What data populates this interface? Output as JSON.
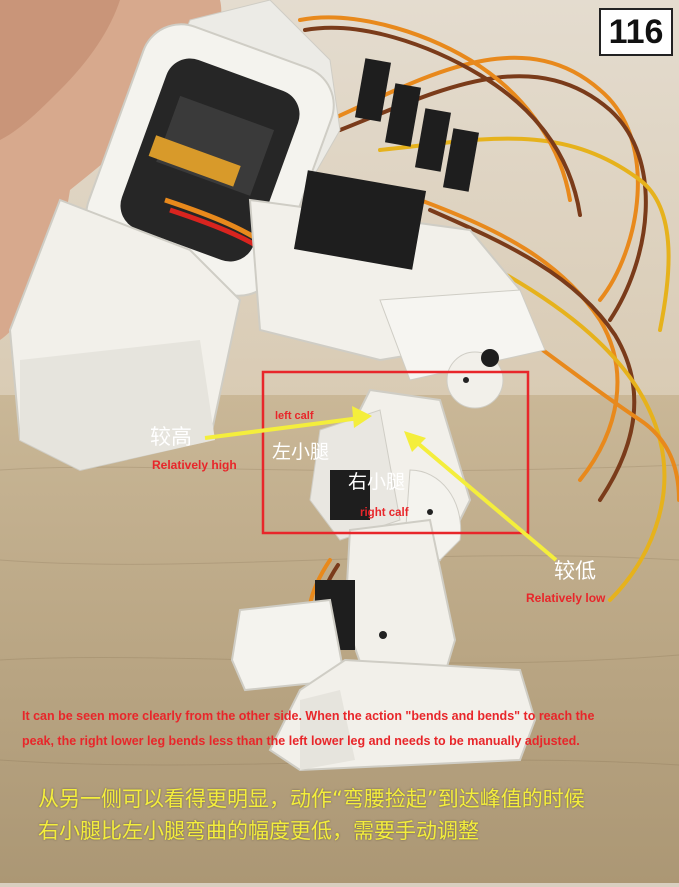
{
  "page_number": "116",
  "labels": {
    "high_cn": "较高",
    "high_en": "Relatively high",
    "low_cn": "较低",
    "low_en": "Relatively low",
    "left_calf_en": "left calf",
    "left_calf_cn": "左小腿",
    "right_calf_cn": "右小腿",
    "right_calf_en": "right calf"
  },
  "caption_en": {
    "line1": "It can be seen more clearly from the other side. When the action \"bends and bends\" to reach the",
    "line2": "peak, the right lower leg bends less than the left lower leg and needs to be manually adjusted."
  },
  "caption_cn": {
    "line1": "从另一侧可以看得更明显，动作“弯腰捡起”到达峰值的时候",
    "line2": "右小腿比左小腿弯曲的幅度更低，需要手动调整"
  },
  "colors": {
    "highlight_box": "#e8262a",
    "arrow": "#f4ee3c",
    "robot_body": "#f2f0ea",
    "servo_dark": "#222222",
    "wire_orange": "#e8891c",
    "wire_brown": "#7a3b1a"
  }
}
